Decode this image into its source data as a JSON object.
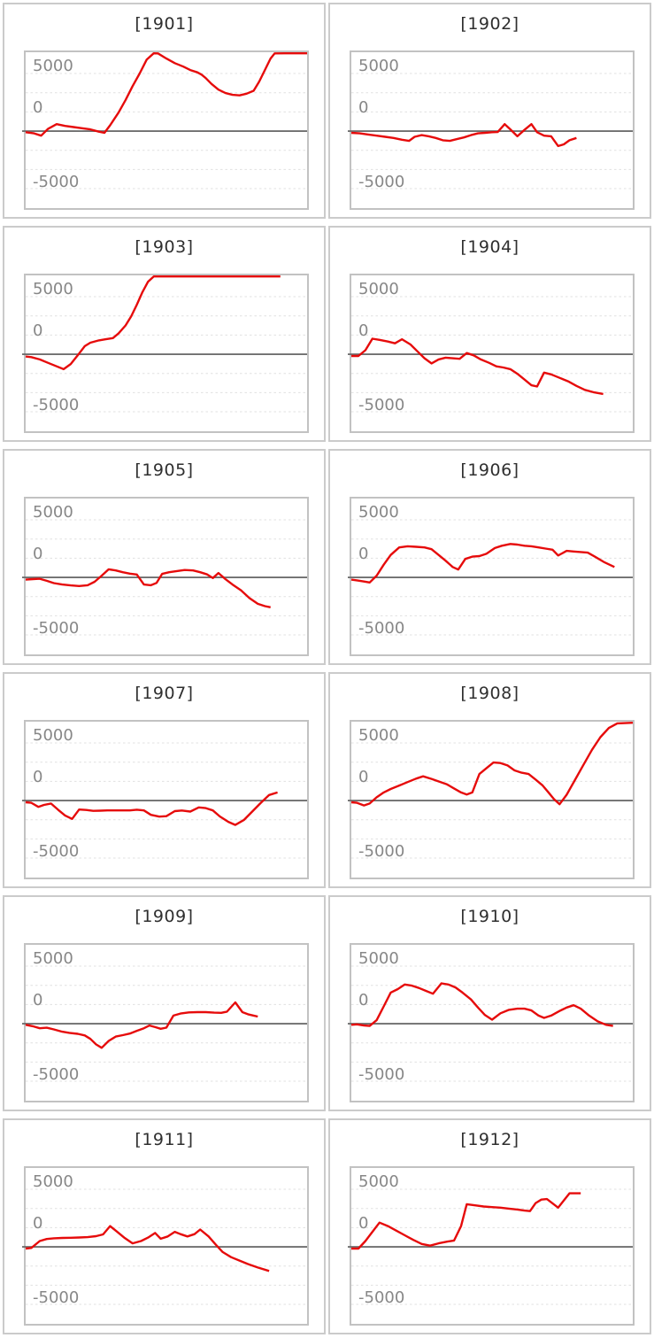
{
  "page": {
    "background": "#ffffff",
    "description": "Grid of twelve yearly sparkline charts"
  },
  "colors": {
    "line": "#e60b0b",
    "minor_gridline": "#e0e0e0",
    "zero_line": "#6e6e6e",
    "plot_border": "#c2c2c2",
    "cell_border": "#cbcbcb",
    "title_text": "#2f2f2f",
    "tick_text": "#878787"
  },
  "chart_data": {
    "type": "line",
    "layout": "grid-6-rows-2-cols",
    "x_axis": "hidden",
    "grid": true,
    "legend": "none",
    "ylim": [
      -6690,
      6850
    ],
    "yticks": [
      5000,
      0,
      -5000
    ],
    "ytick_labels": [
      "5000",
      "0",
      "-5000"
    ],
    "minor_gridline_values": [
      5000,
      3333,
      1667,
      -1667,
      -3333,
      -5000
    ],
    "zero_line_value": 0,
    "x_units": "fraction of plot width 0-1",
    "charts": [
      {
        "title": "[1901]",
        "x": [
          0,
          0.03,
          0.055,
          0.08,
          0.11,
          0.14,
          0.17,
          0.2,
          0.23,
          0.26,
          0.28,
          0.3,
          0.33,
          0.355,
          0.38,
          0.405,
          0.43,
          0.455,
          0.47,
          0.5,
          0.53,
          0.56,
          0.585,
          0.61,
          0.625,
          0.64,
          0.66,
          0.685,
          0.71,
          0.735,
          0.76,
          0.785,
          0.81,
          0.83,
          0.85,
          0.87,
          0.885,
          0.92,
          1
        ],
        "values": [
          -100,
          -200,
          -400,
          200,
          600,
          450,
          350,
          250,
          150,
          -50,
          -150,
          500,
          1600,
          2700,
          3900,
          5000,
          6200,
          6800,
          6750,
          6300,
          5900,
          5600,
          5300,
          5100,
          4900,
          4600,
          4100,
          3600,
          3300,
          3150,
          3100,
          3250,
          3500,
          4300,
          5300,
          6300,
          6750,
          6850,
          6880
        ]
      },
      {
        "title": "[1902]",
        "x": [
          0,
          0.03,
          0.06,
          0.09,
          0.12,
          0.15,
          0.18,
          0.205,
          0.225,
          0.25,
          0.275,
          0.3,
          0.325,
          0.35,
          0.375,
          0.4,
          0.425,
          0.45,
          0.475,
          0.5,
          0.52,
          0.545,
          0.565,
          0.59,
          0.615,
          0.64,
          0.66,
          0.685,
          0.71,
          0.735,
          0.755,
          0.775,
          0.8
        ],
        "values": [
          -150,
          -200,
          -300,
          -400,
          -500,
          -600,
          -750,
          -850,
          -500,
          -350,
          -450,
          -600,
          -800,
          -850,
          -700,
          -550,
          -350,
          -200,
          -150,
          -100,
          -80,
          600,
          150,
          -450,
          100,
          600,
          -100,
          -400,
          -450,
          -1300,
          -1150,
          -800,
          -600
        ]
      },
      {
        "title": "[1903]",
        "x": [
          0,
          0.02,
          0.05,
          0.08,
          0.11,
          0.135,
          0.16,
          0.185,
          0.21,
          0.23,
          0.26,
          0.285,
          0.31,
          0.33,
          0.355,
          0.375,
          0.395,
          0.415,
          0.435,
          0.455,
          0.905
        ],
        "values": [
          -200,
          -250,
          -450,
          -750,
          -1050,
          -1300,
          -850,
          -100,
          700,
          1000,
          1200,
          1300,
          1400,
          1800,
          2500,
          3300,
          4300,
          5400,
          6300,
          6880,
          6880
        ]
      },
      {
        "title": "[1904]",
        "x": [
          0,
          0.025,
          0.05,
          0.075,
          0.1,
          0.13,
          0.155,
          0.18,
          0.21,
          0.235,
          0.26,
          0.285,
          0.31,
          0.335,
          0.36,
          0.385,
          0.41,
          0.435,
          0.46,
          0.49,
          0.515,
          0.54,
          0.565,
          0.59,
          0.615,
          0.64,
          0.66,
          0.685,
          0.71,
          0.74,
          0.77,
          0.8,
          0.83,
          0.86,
          0.895
        ],
        "values": [
          -150,
          -150,
          350,
          1350,
          1250,
          1100,
          950,
          1300,
          850,
          250,
          -350,
          -800,
          -450,
          -300,
          -350,
          -400,
          100,
          -100,
          -450,
          -750,
          -1050,
          -1150,
          -1300,
          -1700,
          -2200,
          -2700,
          -2800,
          -1600,
          -1750,
          -2050,
          -2350,
          -2750,
          -3100,
          -3300,
          -3450
        ]
      },
      {
        "title": "[1905]",
        "x": [
          0,
          0.025,
          0.05,
          0.075,
          0.1,
          0.13,
          0.16,
          0.19,
          0.22,
          0.245,
          0.27,
          0.295,
          0.32,
          0.345,
          0.37,
          0.395,
          0.42,
          0.445,
          0.465,
          0.485,
          0.51,
          0.54,
          0.565,
          0.595,
          0.62,
          0.645,
          0.665,
          0.685,
          0.71,
          0.735,
          0.765,
          0.795,
          0.825,
          0.85,
          0.87
        ],
        "values": [
          -200,
          -150,
          -120,
          -300,
          -500,
          -620,
          -700,
          -750,
          -680,
          -380,
          150,
          700,
          600,
          450,
          330,
          250,
          -620,
          -680,
          -480,
          300,
          450,
          560,
          640,
          600,
          450,
          260,
          -60,
          380,
          -160,
          -620,
          -1120,
          -1800,
          -2300,
          -2500,
          -2600
        ]
      },
      {
        "title": "[1906]",
        "x": [
          0,
          0.02,
          0.045,
          0.065,
          0.09,
          0.115,
          0.14,
          0.17,
          0.2,
          0.23,
          0.26,
          0.285,
          0.31,
          0.335,
          0.36,
          0.38,
          0.405,
          0.43,
          0.455,
          0.48,
          0.51,
          0.535,
          0.565,
          0.59,
          0.615,
          0.64,
          0.665,
          0.69,
          0.715,
          0.735,
          0.765,
          0.79,
          0.815,
          0.84,
          0.865,
          0.9,
          0.935
        ],
        "values": [
          -200,
          -260,
          -360,
          -440,
          150,
          1100,
          1950,
          2600,
          2700,
          2660,
          2600,
          2450,
          1950,
          1450,
          900,
          680,
          1600,
          1800,
          1850,
          2050,
          2550,
          2750,
          2900,
          2850,
          2750,
          2700,
          2600,
          2500,
          2400,
          1900,
          2300,
          2250,
          2200,
          2150,
          1800,
          1300,
          900
        ]
      },
      {
        "title": "[1907]",
        "x": [
          0,
          0.02,
          0.045,
          0.065,
          0.09,
          0.115,
          0.14,
          0.165,
          0.19,
          0.215,
          0.24,
          0.265,
          0.29,
          0.315,
          0.345,
          0.37,
          0.395,
          0.42,
          0.445,
          0.475,
          0.5,
          0.53,
          0.555,
          0.585,
          0.615,
          0.64,
          0.665,
          0.69,
          0.72,
          0.745,
          0.775,
          0.805,
          0.835,
          0.865,
          0.895
        ],
        "values": [
          -150,
          -200,
          -550,
          -380,
          -260,
          -800,
          -1300,
          -1600,
          -780,
          -820,
          -900,
          -880,
          -860,
          -860,
          -860,
          -860,
          -800,
          -860,
          -1240,
          -1400,
          -1360,
          -920,
          -870,
          -960,
          -600,
          -660,
          -860,
          -1380,
          -1850,
          -2120,
          -1700,
          -960,
          -220,
          480,
          700
        ]
      },
      {
        "title": "[1908]",
        "x": [
          0,
          0.02,
          0.045,
          0.065,
          0.09,
          0.115,
          0.14,
          0.17,
          0.2,
          0.23,
          0.255,
          0.285,
          0.315,
          0.34,
          0.365,
          0.39,
          0.41,
          0.43,
          0.455,
          0.48,
          0.505,
          0.53,
          0.555,
          0.58,
          0.605,
          0.63,
          0.655,
          0.68,
          0.7,
          0.72,
          0.74,
          0.765,
          0.795,
          0.825,
          0.855,
          0.885,
          0.915,
          0.945,
          1
        ],
        "values": [
          -150,
          -200,
          -430,
          -260,
          280,
          700,
          1000,
          1300,
          1600,
          1900,
          2100,
          1880,
          1620,
          1400,
          1050,
          700,
          520,
          700,
          2300,
          2800,
          3300,
          3260,
          3050,
          2620,
          2420,
          2300,
          1820,
          1300,
          720,
          120,
          -320,
          500,
          1800,
          3100,
          4400,
          5500,
          6300,
          6700,
          6880
        ]
      },
      {
        "title": "[1909]",
        "x": [
          0,
          0.025,
          0.05,
          0.075,
          0.1,
          0.13,
          0.155,
          0.185,
          0.21,
          0.23,
          0.25,
          0.27,
          0.295,
          0.32,
          0.345,
          0.37,
          0.395,
          0.42,
          0.44,
          0.46,
          0.48,
          0.5,
          0.525,
          0.55,
          0.58,
          0.61,
          0.64,
          0.67,
          0.695,
          0.715,
          0.745,
          0.77,
          0.79,
          0.81,
          0.825
        ],
        "values": [
          -100,
          -220,
          -400,
          -350,
          -500,
          -700,
          -800,
          -880,
          -1020,
          -1320,
          -1800,
          -2100,
          -1500,
          -1120,
          -1000,
          -860,
          -620,
          -400,
          -160,
          -300,
          -440,
          -340,
          700,
          880,
          980,
          1000,
          1000,
          960,
          940,
          1040,
          1850,
          1000,
          820,
          700,
          620
        ]
      },
      {
        "title": "[1910]",
        "x": [
          0,
          0.02,
          0.045,
          0.065,
          0.09,
          0.115,
          0.14,
          0.165,
          0.19,
          0.215,
          0.24,
          0.265,
          0.29,
          0.32,
          0.345,
          0.37,
          0.395,
          0.425,
          0.45,
          0.475,
          0.5,
          0.53,
          0.56,
          0.59,
          0.615,
          0.64,
          0.665,
          0.685,
          0.71,
          0.74,
          0.765,
          0.79,
          0.815,
          0.845,
          0.875,
          0.905,
          0.93
        ],
        "values": [
          -100,
          -60,
          -160,
          -200,
          300,
          1500,
          2700,
          3000,
          3400,
          3300,
          3100,
          2850,
          2600,
          3500,
          3400,
          3150,
          2700,
          2100,
          1400,
          750,
          350,
          900,
          1200,
          1300,
          1300,
          1150,
          700,
          500,
          700,
          1100,
          1400,
          1600,
          1300,
          700,
          200,
          -100,
          -200
        ]
      },
      {
        "title": "[1911]",
        "x": [
          0,
          0.02,
          0.05,
          0.075,
          0.1,
          0.13,
          0.16,
          0.19,
          0.22,
          0.25,
          0.275,
          0.3,
          0.325,
          0.35,
          0.38,
          0.41,
          0.435,
          0.46,
          0.48,
          0.505,
          0.53,
          0.55,
          0.575,
          0.6,
          0.62,
          0.65,
          0.675,
          0.7,
          0.73,
          0.76,
          0.79,
          0.825,
          0.865
        ],
        "values": [
          -150,
          -100,
          500,
          680,
          740,
          770,
          790,
          810,
          840,
          930,
          1080,
          1800,
          1300,
          800,
          300,
          500,
          800,
          1200,
          700,
          900,
          1300,
          1100,
          900,
          1100,
          1500,
          900,
          200,
          -450,
          -900,
          -1200,
          -1500,
          -1800,
          -2100
        ]
      },
      {
        "title": "[1912]",
        "x": [
          0,
          0.025,
          0.05,
          0.075,
          0.1,
          0.13,
          0.16,
          0.19,
          0.22,
          0.25,
          0.28,
          0.31,
          0.34,
          0.365,
          0.39,
          0.41,
          0.44,
          0.47,
          0.5,
          0.53,
          0.56,
          0.59,
          0.615,
          0.635,
          0.655,
          0.675,
          0.695,
          0.735,
          0.775,
          0.815
        ],
        "values": [
          -150,
          -150,
          500,
          1300,
          2100,
          1800,
          1400,
          1000,
          600,
          250,
          100,
          300,
          450,
          550,
          1800,
          3700,
          3600,
          3500,
          3450,
          3400,
          3320,
          3240,
          3150,
          3100,
          3800,
          4100,
          4150,
          3400,
          4650,
          4650
        ]
      }
    ]
  }
}
